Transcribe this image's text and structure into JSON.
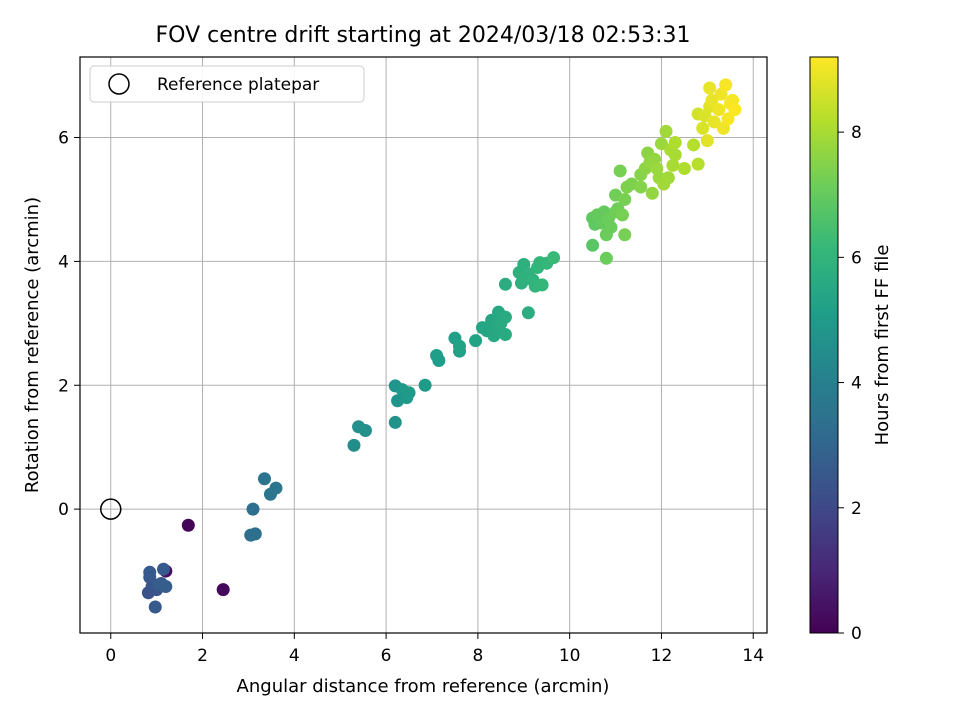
{
  "chart_data": {
    "type": "scatter",
    "title": "FOV centre drift starting at 2024/03/18 02:53:31",
    "xlabel": "Angular distance from reference (arcmin)",
    "ylabel": "Rotation from reference (arcmin)",
    "xlim": [
      -0.67,
      14.3
    ],
    "ylim": [
      -2.0,
      7.3
    ],
    "xticks": [
      0,
      2,
      4,
      6,
      8,
      10,
      12,
      14
    ],
    "yticks": [
      0,
      2,
      4,
      6
    ],
    "grid": true,
    "legend": {
      "placement": "top-left",
      "entries": [
        "Reference platepar"
      ]
    },
    "reference_point": {
      "x": 0,
      "y": 0
    },
    "colorbar": {
      "label": "Hours from first FF file",
      "ticks": [
        0,
        2,
        4,
        6,
        8
      ],
      "range": [
        0,
        9.2
      ],
      "colormap": "viridis"
    },
    "series": [
      {
        "points": [
          {
            "x": 1.69,
            "y": -0.26,
            "c": 0.1
          },
          {
            "x": 2.45,
            "y": -1.3,
            "c": 0.2
          },
          {
            "x": 1.2,
            "y": -1.0,
            "c": 0.3
          },
          {
            "x": 0.82,
            "y": -1.35,
            "c": 2.3
          },
          {
            "x": 0.9,
            "y": -1.25,
            "c": 2.4
          },
          {
            "x": 0.85,
            "y": -1.1,
            "c": 2.5
          },
          {
            "x": 0.85,
            "y": -1.02,
            "c": 2.6
          },
          {
            "x": 1.0,
            "y": -1.3,
            "c": 2.4
          },
          {
            "x": 1.1,
            "y": -1.2,
            "c": 2.5
          },
          {
            "x": 1.15,
            "y": -0.97,
            "c": 2.6
          },
          {
            "x": 1.2,
            "y": -1.25,
            "c": 2.7
          },
          {
            "x": 0.97,
            "y": -1.58,
            "c": 2.6
          },
          {
            "x": 1.05,
            "y": -1.22,
            "c": 2.7
          },
          {
            "x": 3.1,
            "y": 0.0,
            "c": 3.3
          },
          {
            "x": 3.05,
            "y": -0.42,
            "c": 3.3
          },
          {
            "x": 3.15,
            "y": -0.4,
            "c": 3.4
          },
          {
            "x": 3.35,
            "y": 0.49,
            "c": 3.5
          },
          {
            "x": 3.48,
            "y": 0.24,
            "c": 3.6
          },
          {
            "x": 3.6,
            "y": 0.34,
            "c": 3.6
          },
          {
            "x": 5.3,
            "y": 1.03,
            "c": 4.5
          },
          {
            "x": 5.4,
            "y": 1.33,
            "c": 4.6
          },
          {
            "x": 5.55,
            "y": 1.27,
            "c": 4.6
          },
          {
            "x": 6.2,
            "y": 1.4,
            "c": 4.7
          },
          {
            "x": 6.2,
            "y": 1.99,
            "c": 4.8
          },
          {
            "x": 6.25,
            "y": 1.75,
            "c": 4.8
          },
          {
            "x": 6.35,
            "y": 1.93,
            "c": 4.9
          },
          {
            "x": 6.45,
            "y": 1.8,
            "c": 4.9
          },
          {
            "x": 6.5,
            "y": 1.88,
            "c": 5.0
          },
          {
            "x": 6.85,
            "y": 2.0,
            "c": 5.0
          },
          {
            "x": 7.1,
            "y": 2.48,
            "c": 5.1
          },
          {
            "x": 7.15,
            "y": 2.4,
            "c": 5.1
          },
          {
            "x": 7.5,
            "y": 2.76,
            "c": 5.2
          },
          {
            "x": 7.6,
            "y": 2.55,
            "c": 5.2
          },
          {
            "x": 7.6,
            "y": 2.63,
            "c": 5.3
          },
          {
            "x": 7.95,
            "y": 2.72,
            "c": 5.3
          },
          {
            "x": 8.1,
            "y": 2.93,
            "c": 5.4
          },
          {
            "x": 8.2,
            "y": 2.88,
            "c": 5.4
          },
          {
            "x": 8.3,
            "y": 3.05,
            "c": 5.4
          },
          {
            "x": 8.35,
            "y": 2.8,
            "c": 5.5
          },
          {
            "x": 8.4,
            "y": 2.95,
            "c": 5.5
          },
          {
            "x": 8.45,
            "y": 3.18,
            "c": 5.5
          },
          {
            "x": 8.5,
            "y": 3.0,
            "c": 5.6
          },
          {
            "x": 8.6,
            "y": 2.82,
            "c": 5.6
          },
          {
            "x": 8.6,
            "y": 3.1,
            "c": 5.6
          },
          {
            "x": 8.6,
            "y": 3.63,
            "c": 5.7
          },
          {
            "x": 9.1,
            "y": 3.17,
            "c": 5.7
          },
          {
            "x": 8.9,
            "y": 3.82,
            "c": 5.8
          },
          {
            "x": 8.95,
            "y": 3.65,
            "c": 5.8
          },
          {
            "x": 9.0,
            "y": 3.95,
            "c": 5.8
          },
          {
            "x": 9.05,
            "y": 3.72,
            "c": 5.9
          },
          {
            "x": 9.1,
            "y": 3.8,
            "c": 5.9
          },
          {
            "x": 9.2,
            "y": 3.7,
            "c": 5.9
          },
          {
            "x": 9.25,
            "y": 3.6,
            "c": 6.0
          },
          {
            "x": 9.3,
            "y": 3.9,
            "c": 6.0
          },
          {
            "x": 9.35,
            "y": 3.98,
            "c": 6.0
          },
          {
            "x": 9.4,
            "y": 3.62,
            "c": 6.1
          },
          {
            "x": 9.5,
            "y": 3.97,
            "c": 6.1
          },
          {
            "x": 9.65,
            "y": 4.06,
            "c": 6.2
          },
          {
            "x": 10.5,
            "y": 4.26,
            "c": 6.8
          },
          {
            "x": 10.5,
            "y": 4.7,
            "c": 6.9
          },
          {
            "x": 10.55,
            "y": 4.6,
            "c": 6.9
          },
          {
            "x": 10.6,
            "y": 4.75,
            "c": 7.0
          },
          {
            "x": 10.7,
            "y": 4.62,
            "c": 7.0
          },
          {
            "x": 10.75,
            "y": 4.8,
            "c": 7.0
          },
          {
            "x": 10.8,
            "y": 4.43,
            "c": 7.1
          },
          {
            "x": 10.8,
            "y": 4.05,
            "c": 7.1
          },
          {
            "x": 10.85,
            "y": 4.7,
            "c": 7.1
          },
          {
            "x": 10.9,
            "y": 4.55,
            "c": 7.1
          },
          {
            "x": 11.0,
            "y": 4.8,
            "c": 7.2
          },
          {
            "x": 11.0,
            "y": 5.07,
            "c": 7.2
          },
          {
            "x": 11.05,
            "y": 4.85,
            "c": 7.2
          },
          {
            "x": 11.1,
            "y": 5.46,
            "c": 7.3
          },
          {
            "x": 11.15,
            "y": 4.75,
            "c": 7.3
          },
          {
            "x": 11.2,
            "y": 5.0,
            "c": 7.3
          },
          {
            "x": 11.2,
            "y": 4.43,
            "c": 7.3
          },
          {
            "x": 11.25,
            "y": 5.2,
            "c": 7.4
          },
          {
            "x": 11.35,
            "y": 5.25,
            "c": 7.4
          },
          {
            "x": 11.55,
            "y": 5.2,
            "c": 7.5
          },
          {
            "x": 11.55,
            "y": 5.4,
            "c": 7.5
          },
          {
            "x": 11.65,
            "y": 5.5,
            "c": 7.6
          },
          {
            "x": 11.7,
            "y": 5.75,
            "c": 7.6
          },
          {
            "x": 11.75,
            "y": 5.6,
            "c": 7.7
          },
          {
            "x": 11.8,
            "y": 5.1,
            "c": 7.7
          },
          {
            "x": 11.85,
            "y": 5.65,
            "c": 7.7
          },
          {
            "x": 11.9,
            "y": 5.5,
            "c": 7.8
          },
          {
            "x": 11.95,
            "y": 5.35,
            "c": 7.8
          },
          {
            "x": 12.0,
            "y": 5.9,
            "c": 7.8
          },
          {
            "x": 12.05,
            "y": 5.25,
            "c": 7.9
          },
          {
            "x": 12.1,
            "y": 6.1,
            "c": 7.9
          },
          {
            "x": 12.15,
            "y": 5.35,
            "c": 7.9
          },
          {
            "x": 12.2,
            "y": 5.8,
            "c": 8.0
          },
          {
            "x": 12.25,
            "y": 5.55,
            "c": 8.0
          },
          {
            "x": 12.3,
            "y": 5.72,
            "c": 8.0
          },
          {
            "x": 12.3,
            "y": 5.92,
            "c": 8.1
          },
          {
            "x": 12.5,
            "y": 5.5,
            "c": 8.1
          },
          {
            "x": 12.7,
            "y": 5.88,
            "c": 8.2
          },
          {
            "x": 12.8,
            "y": 5.57,
            "c": 8.2
          },
          {
            "x": 12.8,
            "y": 6.38,
            "c": 8.6
          },
          {
            "x": 12.9,
            "y": 6.15,
            "c": 8.7
          },
          {
            "x": 12.95,
            "y": 6.35,
            "c": 8.7
          },
          {
            "x": 13.0,
            "y": 5.95,
            "c": 8.8
          },
          {
            "x": 13.05,
            "y": 6.5,
            "c": 8.8
          },
          {
            "x": 13.05,
            "y": 6.8,
            "c": 8.9
          },
          {
            "x": 13.1,
            "y": 6.6,
            "c": 8.9
          },
          {
            "x": 13.15,
            "y": 6.25,
            "c": 8.9
          },
          {
            "x": 13.25,
            "y": 6.45,
            "c": 9.0
          },
          {
            "x": 13.3,
            "y": 6.7,
            "c": 9.0
          },
          {
            "x": 13.35,
            "y": 6.15,
            "c": 9.0
          },
          {
            "x": 13.4,
            "y": 6.85,
            "c": 9.1
          },
          {
            "x": 13.45,
            "y": 6.3,
            "c": 9.1
          },
          {
            "x": 13.5,
            "y": 6.55,
            "c": 9.1
          },
          {
            "x": 13.55,
            "y": 6.6,
            "c": 9.1
          },
          {
            "x": 13.6,
            "y": 6.45,
            "c": 9.2
          }
        ]
      }
    ]
  }
}
